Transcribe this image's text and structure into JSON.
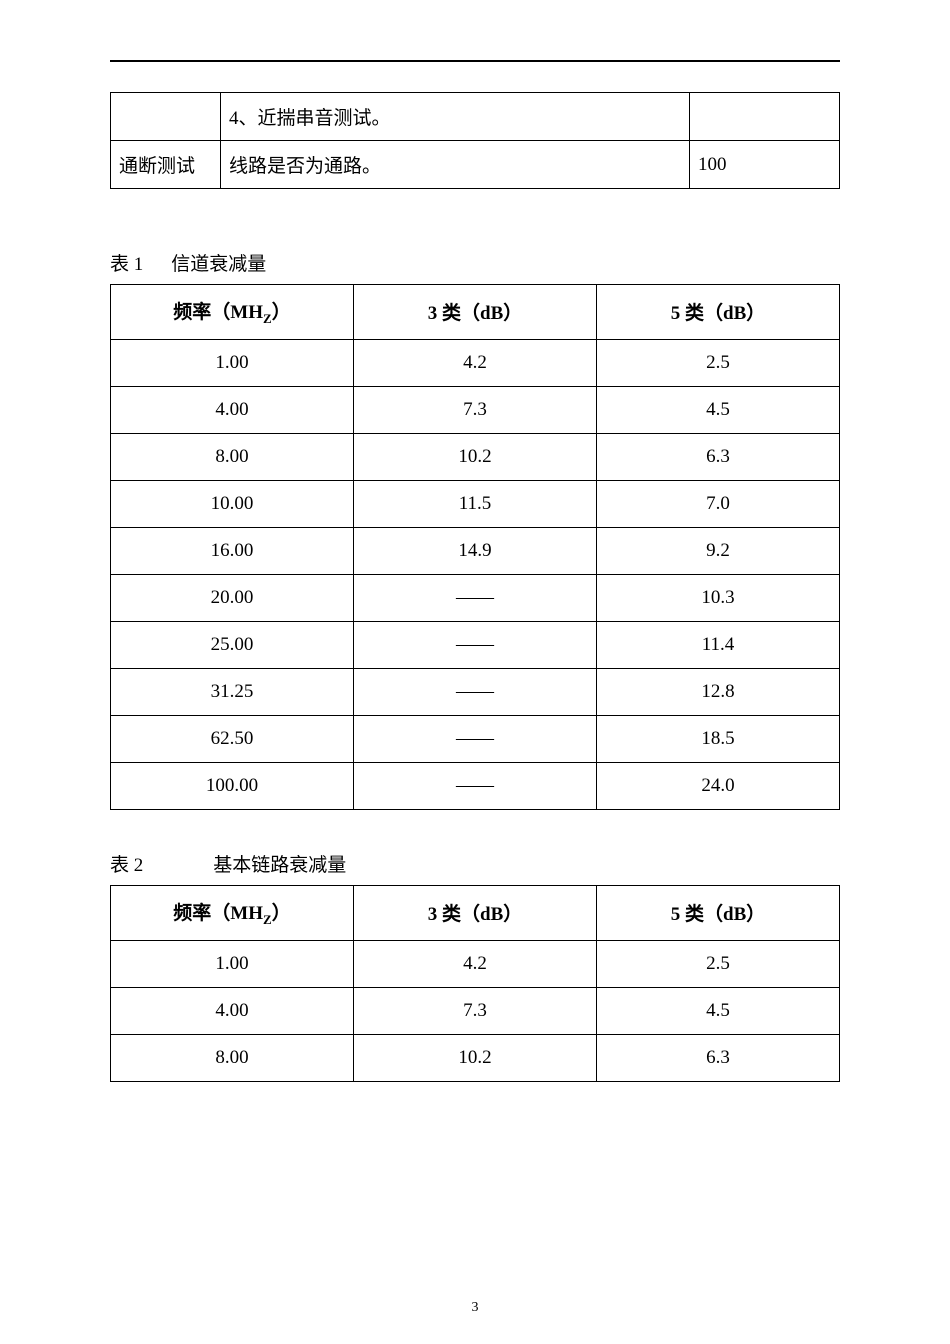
{
  "topTable": {
    "row1": {
      "c1": "",
      "c2": "4、近揣串音测试。",
      "c3": ""
    },
    "row2": {
      "c1": "通断测试",
      "c2": "线路是否为通路。",
      "c3": "100"
    }
  },
  "table1": {
    "caption_prefix": "表 1",
    "caption_text": "信道衰减量",
    "headers": {
      "h1_pre": "频率（MH",
      "h1_sub": "Z",
      "h1_post": "）",
      "h2": "3 类（dB）",
      "h3": "5 类（dB）"
    },
    "rows": [
      {
        "c1": "1.00",
        "c2": "4.2",
        "c3": "2.5"
      },
      {
        "c1": "4.00",
        "c2": "7.3",
        "c3": "4.5"
      },
      {
        "c1": "8.00",
        "c2": "10.2",
        "c3": "6.3"
      },
      {
        "c1": "10.00",
        "c2": "11.5",
        "c3": "7.0"
      },
      {
        "c1": "16.00",
        "c2": "14.9",
        "c3": "9.2"
      },
      {
        "c1": "20.00",
        "c2": "——",
        "c3": "10.3"
      },
      {
        "c1": "25.00",
        "c2": "——",
        "c3": "11.4"
      },
      {
        "c1": "31.25",
        "c2": "——",
        "c3": "12.8"
      },
      {
        "c1": "62.50",
        "c2": "——",
        "c3": "18.5"
      },
      {
        "c1": "100.00",
        "c2": "——",
        "c3": "24.0"
      }
    ]
  },
  "table2": {
    "caption_prefix": "表 2",
    "caption_text": "基本链路衰减量",
    "headers": {
      "h1_pre": "频率（MH",
      "h1_sub": "Z",
      "h1_post": "）",
      "h2": "3 类（dB）",
      "h3": "5 类（dB）"
    },
    "rows": [
      {
        "c1": "1.00",
        "c2": "4.2",
        "c3": "2.5"
      },
      {
        "c1": "4.00",
        "c2": "7.3",
        "c3": "4.5"
      },
      {
        "c1": "8.00",
        "c2": "10.2",
        "c3": "6.3"
      }
    ]
  },
  "pageNumber": "3"
}
